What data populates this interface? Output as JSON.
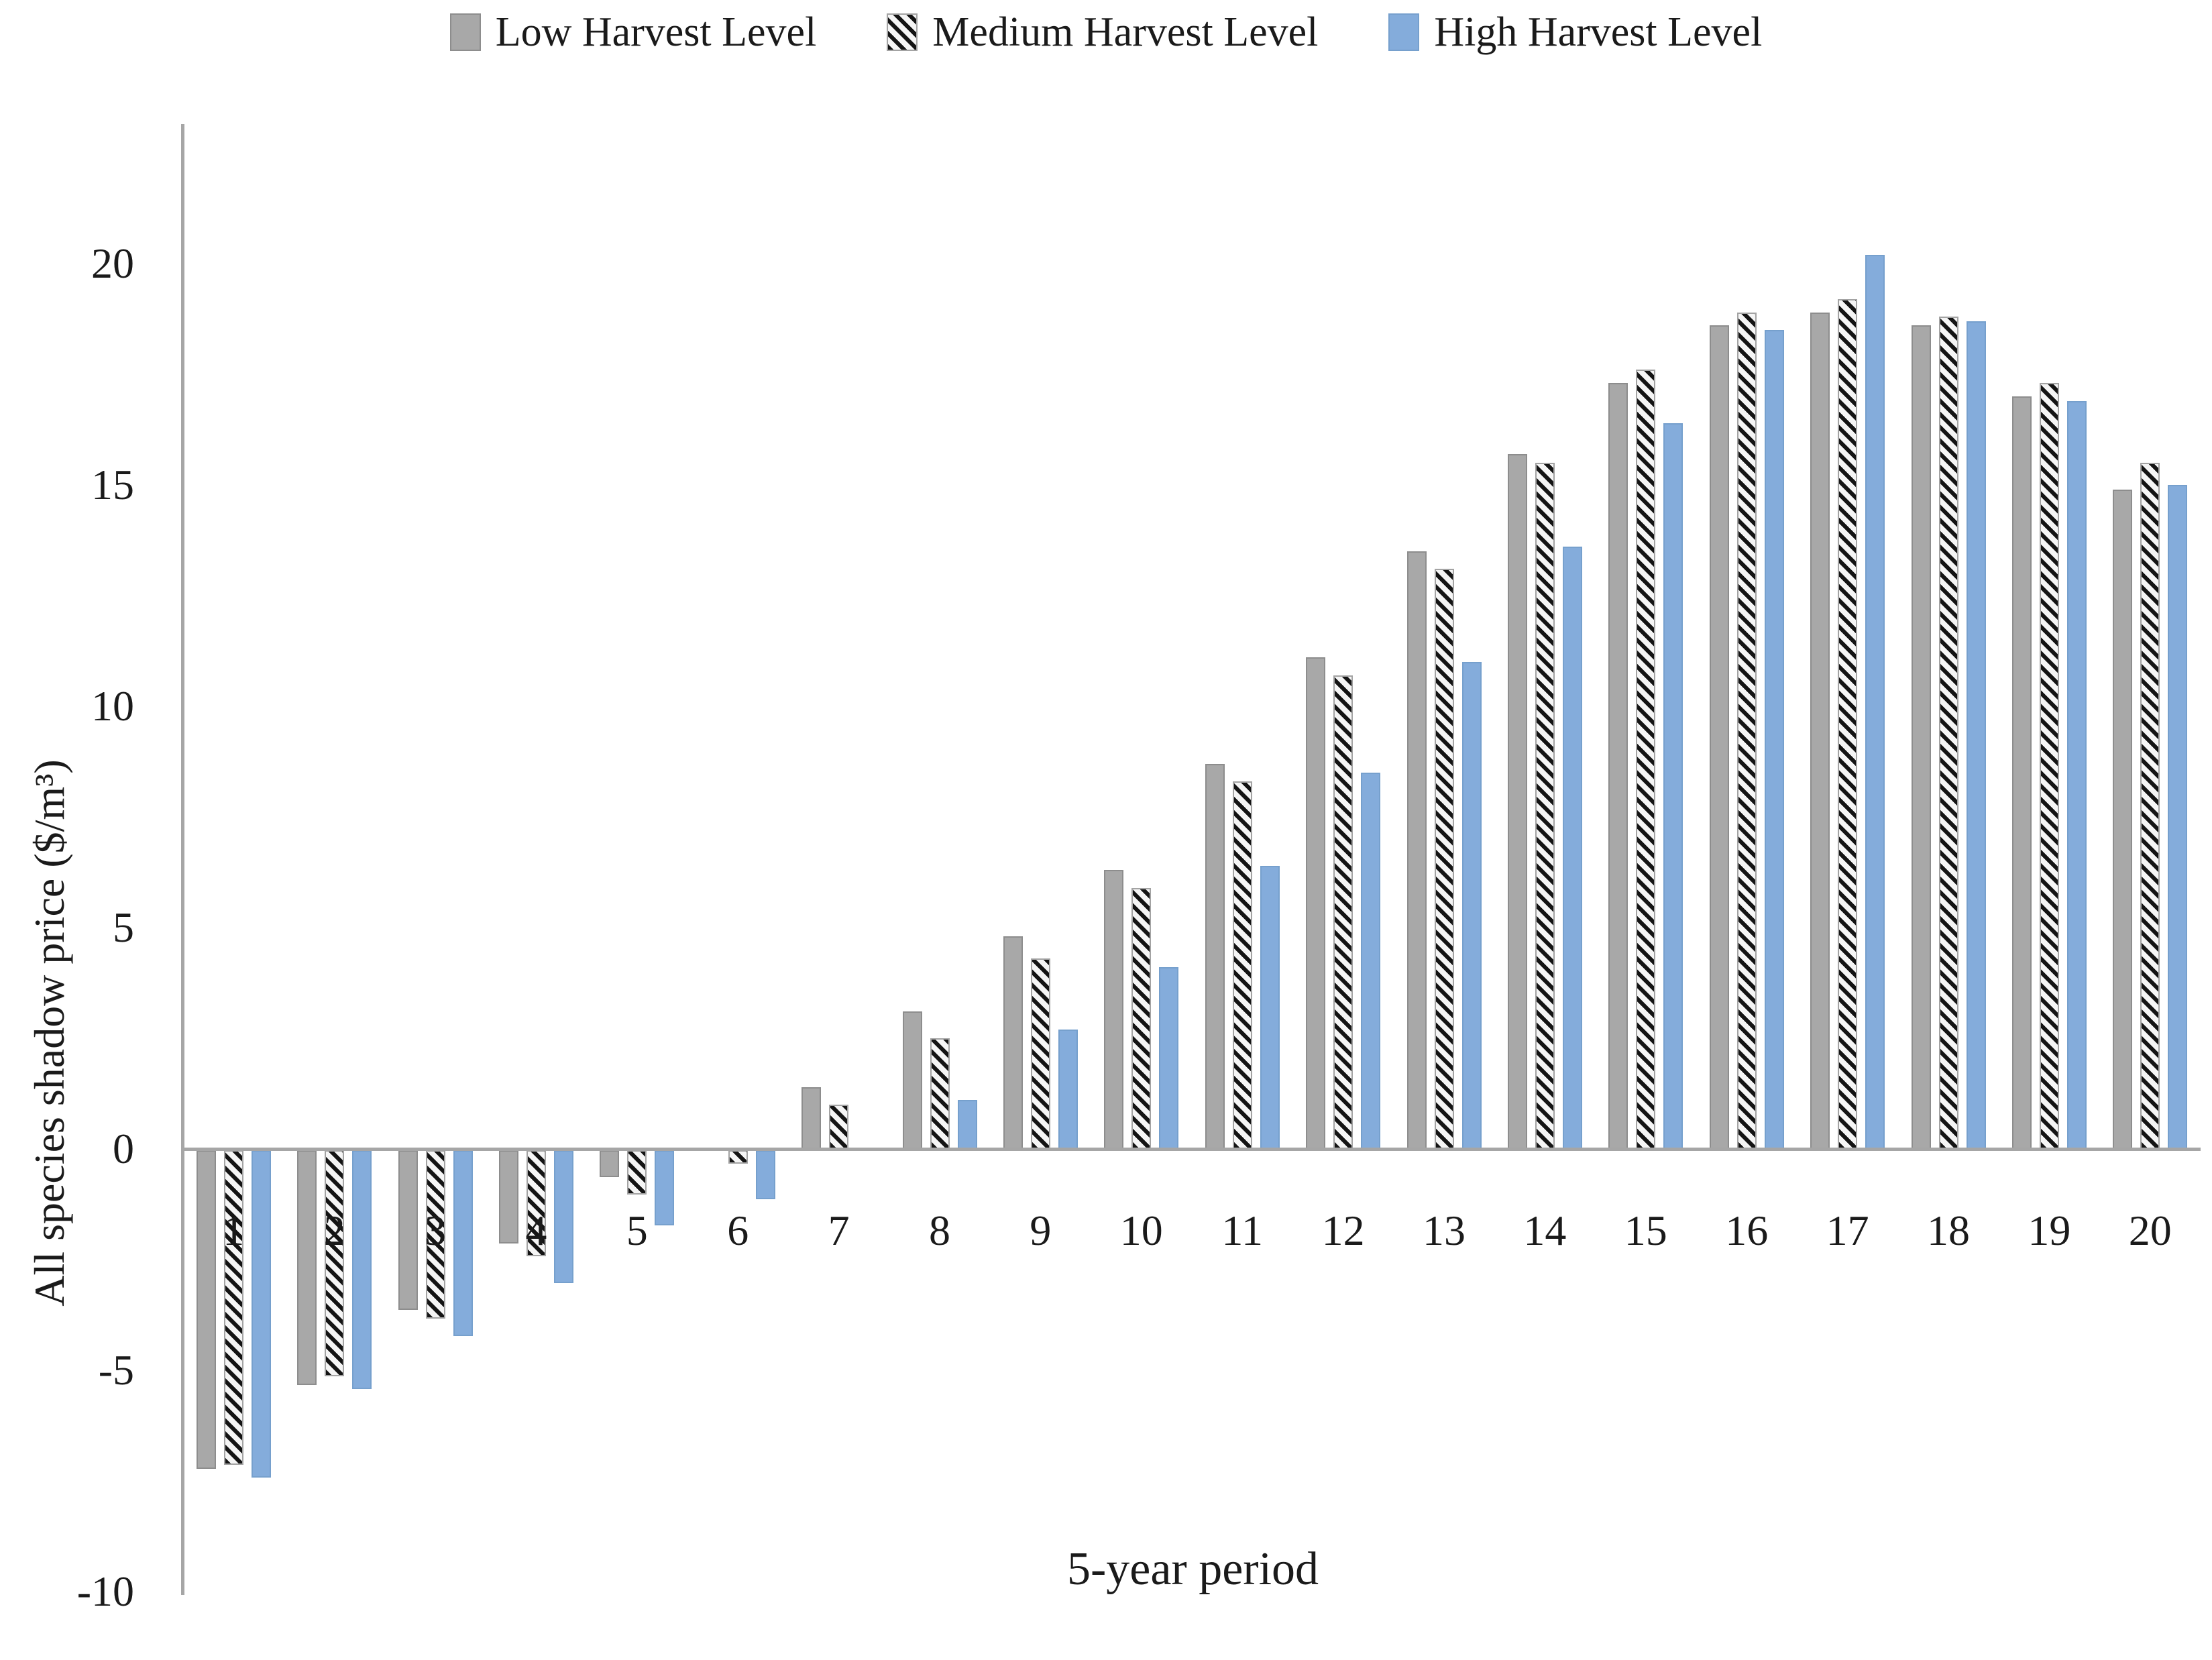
{
  "page": {
    "background": "#ffffff"
  },
  "legend": {
    "items": [
      {
        "label": "Low Harvest Level",
        "series": "low"
      },
      {
        "label": "Medium Harvest Level",
        "series": "medium"
      },
      {
        "label": "High Harvest Level",
        "series": "high"
      }
    ]
  },
  "chart_data": {
    "type": "bar",
    "title": "",
    "xlabel": "5-year period",
    "ylabel": "All species shadow price ($/m³)",
    "categories": [
      "1",
      "2",
      "3",
      "4",
      "5",
      "6",
      "7",
      "8",
      "9",
      "10",
      "11",
      "12",
      "13",
      "14",
      "15",
      "16",
      "17",
      "18",
      "19",
      "20"
    ],
    "series": [
      {
        "name": "Low Harvest Level",
        "style": "solid-gray",
        "color": "#a8a8a8",
        "values": [
          -7.2,
          -5.3,
          -3.6,
          -2.1,
          -0.6,
          0,
          1.4,
          3.1,
          4.8,
          6.3,
          8.7,
          11.1,
          13.5,
          15.7,
          17.3,
          18.6,
          18.9,
          18.6,
          17.0,
          14.9
        ]
      },
      {
        "name": "Medium Harvest Level",
        "style": "black-diagonal-hatch-on-white",
        "color": "#141414",
        "values": [
          -7.1,
          -5.1,
          -3.8,
          -2.4,
          -1.0,
          -0.3,
          1.0,
          2.5,
          4.3,
          5.9,
          8.3,
          10.7,
          13.1,
          15.5,
          17.6,
          18.9,
          19.2,
          18.8,
          17.3,
          15.5
        ]
      },
      {
        "name": "High Harvest Level",
        "style": "solid-blue",
        "color": "#84acdb",
        "values": [
          -7.4,
          -5.4,
          -4.2,
          -3.0,
          -1.7,
          -1.1,
          0,
          1.1,
          2.7,
          4.1,
          6.4,
          8.5,
          11.0,
          13.6,
          16.4,
          18.5,
          20.2,
          18.7,
          16.9,
          15.0
        ]
      }
    ],
    "yticks": [
      20,
      15,
      10,
      5,
      0,
      -5,
      -10
    ],
    "ylim": [
      -10,
      23
    ],
    "grid": false,
    "legend_position": "top-center",
    "colors": {
      "axis_line": "#a6a6a6",
      "text": "#1a1a1a",
      "hatch_background": "#f5f5f5"
    }
  }
}
